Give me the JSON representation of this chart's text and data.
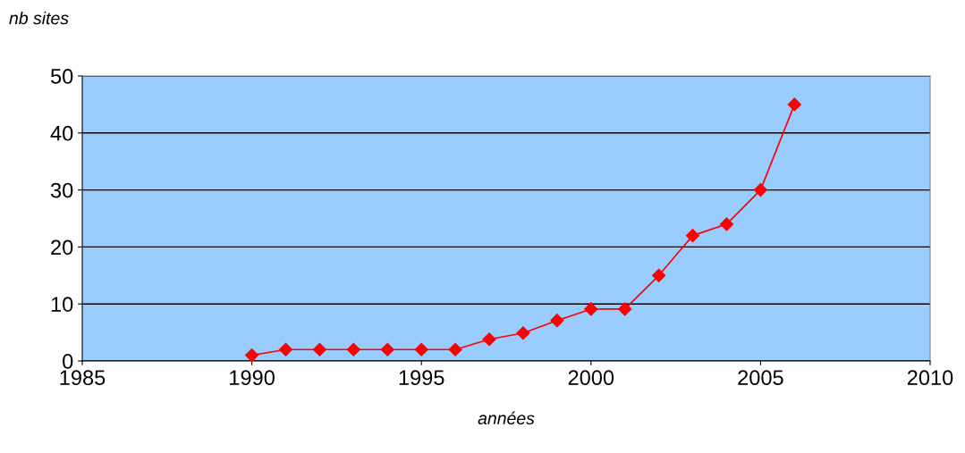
{
  "chart_data": {
    "type": "line",
    "ylabel": "nb sites",
    "xlabel": "années",
    "x": [
      1990,
      1991,
      1992,
      1993,
      1994,
      1995,
      1996,
      1997,
      1998,
      1999,
      2000,
      2001,
      2002,
      2003,
      2004,
      2005,
      2006
    ],
    "series": [
      {
        "color": "#ff0000",
        "values": [
          1,
          2,
          2,
          2,
          2,
          2,
          2,
          3.8,
          4.9,
          7.1,
          9.1,
          9.1,
          15,
          22,
          24,
          30,
          45
        ]
      }
    ],
    "xlim": [
      1985,
      2010
    ],
    "xticks": [
      1985,
      1990,
      1995,
      2000,
      2005,
      2010
    ],
    "ylim": [
      0,
      50
    ],
    "yticks": [
      0,
      10,
      20,
      30,
      40,
      50
    ],
    "grid": "y",
    "marker": "diamond",
    "line_style": "solid",
    "legend": false
  }
}
